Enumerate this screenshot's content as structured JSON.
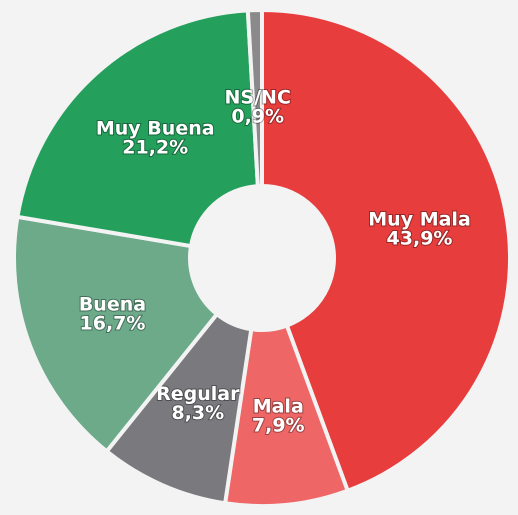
{
  "chart_data": {
    "type": "pie",
    "categories": [
      "Muy Mala",
      "Mala",
      "Regular",
      "Buena",
      "Muy Buena",
      "NS/NC"
    ],
    "values": [
      43.9,
      7.9,
      8.3,
      16.7,
      21.2,
      0.9
    ],
    "value_labels": [
      "43,9%",
      "7,9%",
      "8,3%",
      "16,7%",
      "21,2%",
      "0,9%"
    ],
    "colors": [
      "#e83d3d",
      "#ef6666",
      "#7a7a7e",
      "#6caa8a",
      "#24a05c",
      "#8a8a8a"
    ]
  }
}
